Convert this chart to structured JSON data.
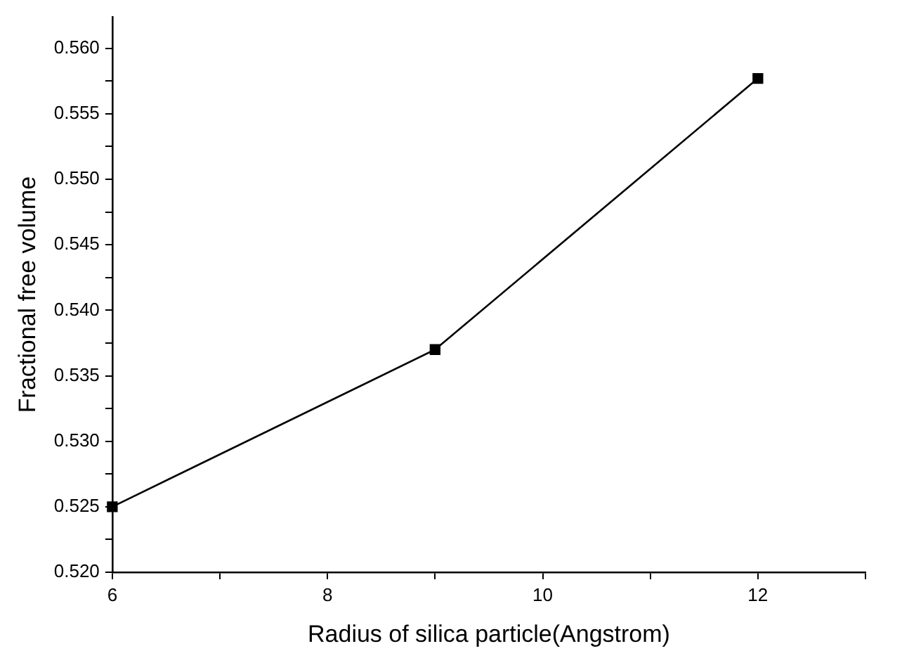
{
  "chart_data": {
    "type": "line",
    "xlabel": "Radius of silica particle(Angstrom)",
    "ylabel": "Fractional free volume",
    "x": [
      6,
      9,
      12
    ],
    "series": [
      {
        "color": "#000000",
        "values": [
          0.525,
          0.537,
          0.5577
        ]
      }
    ],
    "xlim": [
      6,
      13
    ],
    "xticks": [
      6,
      {
        "value": 7,
        "label": null
      },
      8,
      {
        "value": 9,
        "label": null
      },
      10,
      {
        "value": 11,
        "label": null
      },
      12,
      {
        "value": 13,
        "label": null
      }
    ],
    "ylim": [
      0.52,
      0.5624
    ],
    "yticks": [
      {
        "value": 0.52,
        "label": "0.520"
      },
      {
        "value": 0.5225,
        "label": null
      },
      {
        "value": 0.525,
        "label": "0.525"
      },
      {
        "value": 0.5275,
        "label": null
      },
      {
        "value": 0.53,
        "label": "0.530"
      },
      {
        "value": 0.5325,
        "label": null
      },
      {
        "value": 0.535,
        "label": "0.535"
      },
      {
        "value": 0.5375,
        "label": null
      },
      {
        "value": 0.54,
        "label": "0.540"
      },
      {
        "value": 0.5425,
        "label": null
      },
      {
        "value": 0.545,
        "label": "0.545"
      },
      {
        "value": 0.5475,
        "label": null
      },
      {
        "value": 0.55,
        "label": "0.550"
      },
      {
        "value": 0.5525,
        "label": null
      },
      {
        "value": 0.555,
        "label": "0.555"
      },
      {
        "value": 0.5575,
        "label": null
      },
      {
        "value": 0.56,
        "label": "0.560"
      }
    ],
    "grid": false,
    "legend": false,
    "marker": "square",
    "line_style": "solid"
  }
}
